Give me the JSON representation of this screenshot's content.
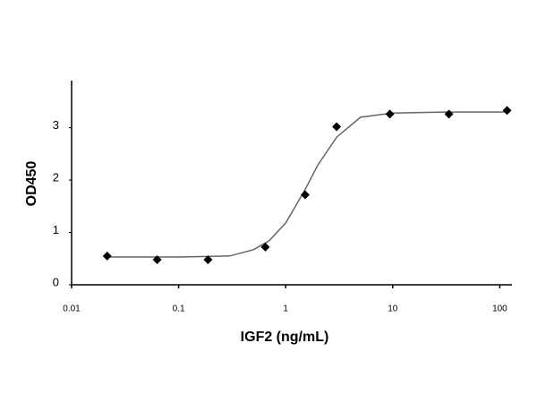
{
  "chart_data": {
    "type": "scatter",
    "xlabel": "IGF2 (ng/mL)",
    "ylabel": "OD450",
    "xlog": true,
    "xlim": [
      0.01,
      125
    ],
    "xticks": [
      0.01,
      0.1,
      1,
      10,
      100
    ],
    "ylim": [
      0,
      3.9
    ],
    "yticks": [
      0,
      1,
      2,
      3
    ],
    "points": {
      "color": "#000000",
      "x": [
        0.0215,
        0.063,
        0.188,
        0.645,
        1.52,
        2.99,
        9.4,
        33.5,
        117
      ],
      "values": [
        0.55,
        0.48,
        0.48,
        0.72,
        1.72,
        3.02,
        3.26,
        3.26,
        3.33
      ]
    },
    "curve": {
      "color": "#666666",
      "x": [
        0.0215,
        0.1,
        0.3,
        0.5,
        0.7,
        1,
        1.5,
        2,
        3,
        5,
        10,
        30,
        117
      ],
      "values": [
        0.53,
        0.53,
        0.55,
        0.67,
        0.84,
        1.18,
        1.8,
        2.29,
        2.82,
        3.2,
        3.28,
        3.3,
        3.3
      ]
    }
  }
}
